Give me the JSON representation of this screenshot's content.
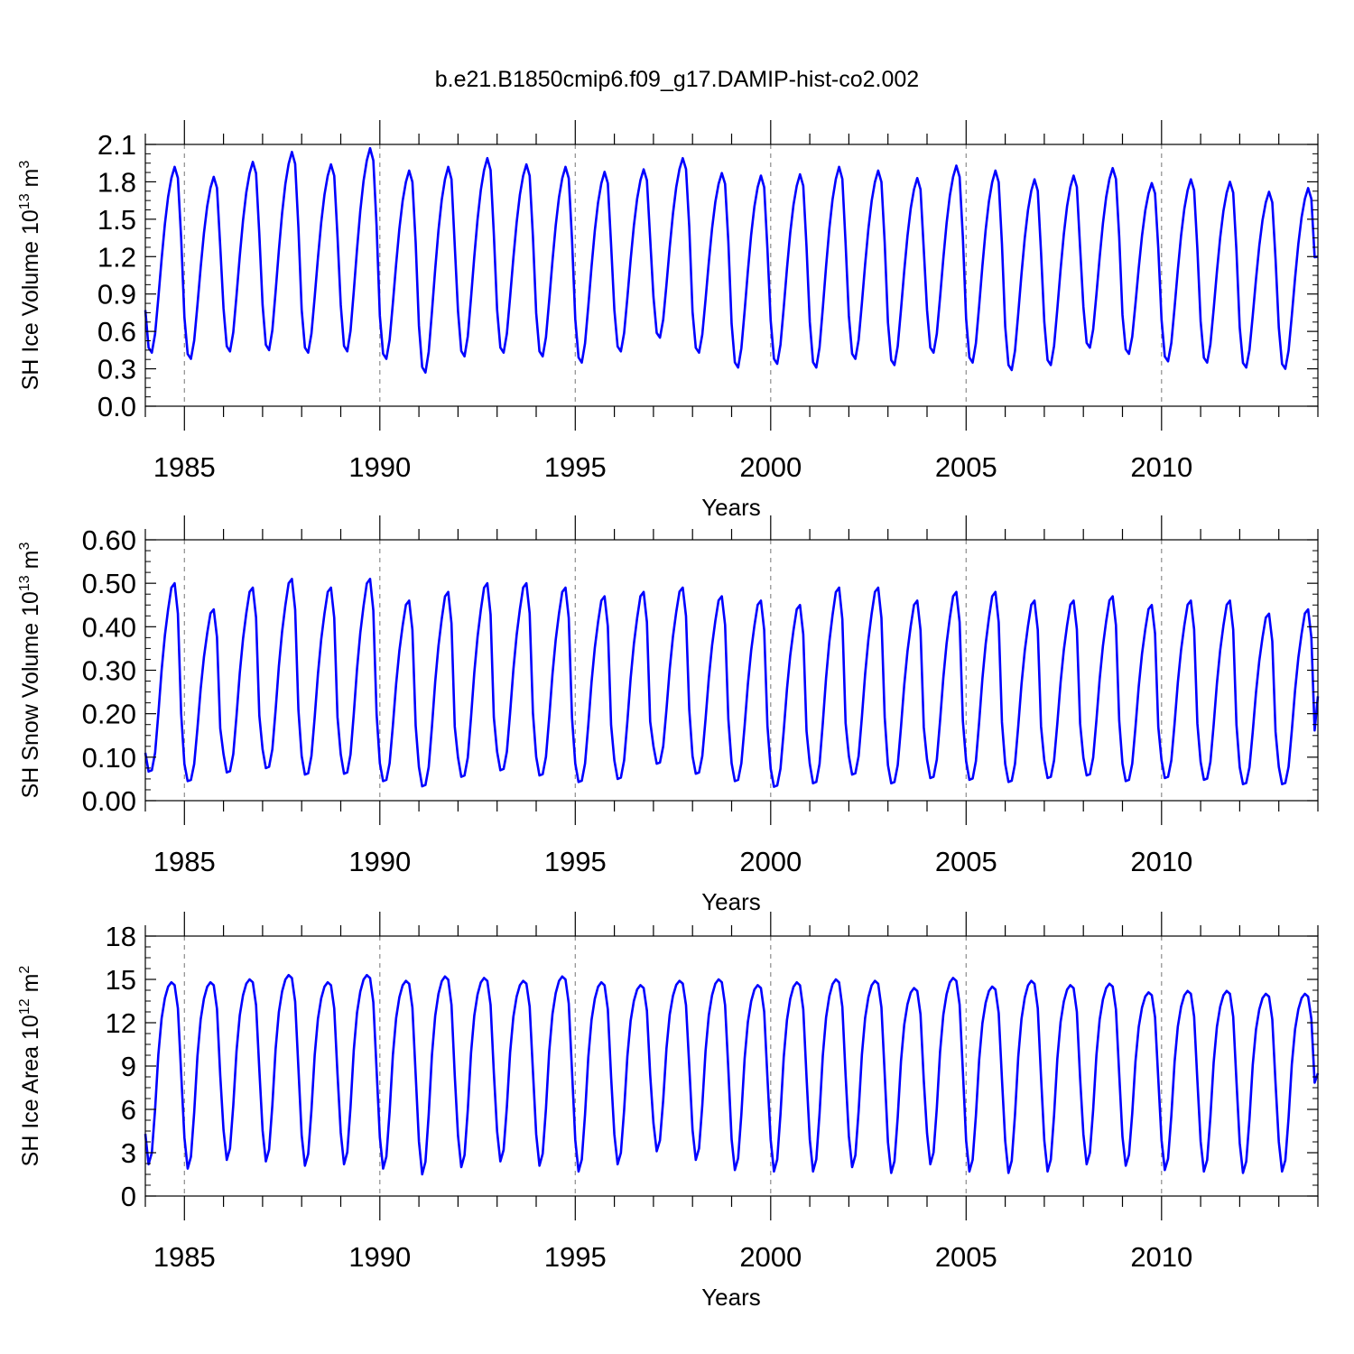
{
  "figure": {
    "title": "b.e21.B1850cmip6.f09_g17.DAMIP-hist-co2.002"
  },
  "colors": {
    "series": "#0000ff",
    "axis": "#000000",
    "year_marker": "#8c8c8c"
  },
  "chart_data": [
    {
      "type": "line",
      "ylabel": {
        "base": "SH Ice Volume 10",
        "exp": "13",
        "unit": " m",
        "unit_exp": "3"
      },
      "xlabel": "Years",
      "xlim": [
        1984.0,
        2014.0
      ],
      "ylim": [
        0.0,
        2.1
      ],
      "x_ticks": [
        1985,
        1990,
        1995,
        2000,
        2005,
        2010
      ],
      "y_ticks": [
        "0.0",
        "0.3",
        "0.6",
        "0.9",
        "1.2",
        "1.5",
        "1.8",
        "2.1"
      ],
      "grid": "dashed vertical lines at labeled years",
      "series": [
        {
          "x_start": 1984.0,
          "step_months": 1,
          "annual_cycle": [
            0.77,
            0.47,
            0.43,
            0.58,
            0.87,
            1.18,
            1.46,
            1.68,
            1.83,
            1.92,
            1.83,
            1.35
          ],
          "annual_min": [
            0.43,
            0.38,
            0.44,
            0.45,
            0.43,
            0.44,
            0.38,
            0.27,
            0.4,
            0.43,
            0.4,
            0.35,
            0.44,
            0.55,
            0.43,
            0.31,
            0.34,
            0.31,
            0.38,
            0.33,
            0.43,
            0.35,
            0.29,
            0.33,
            0.47,
            0.42,
            0.36,
            0.35,
            0.31,
            0.3
          ],
          "annual_max": [
            1.92,
            1.84,
            1.96,
            2.04,
            1.94,
            2.07,
            1.89,
            1.92,
            1.99,
            1.94,
            1.92,
            1.88,
            1.9,
            1.99,
            1.87,
            1.85,
            1.86,
            1.92,
            1.89,
            1.83,
            1.93,
            1.89,
            1.82,
            1.85,
            1.91,
            1.79,
            1.82,
            1.8,
            1.72,
            1.75
          ],
          "end_value": 1.2
        }
      ]
    },
    {
      "type": "line",
      "ylabel": {
        "base": "SH Snow Volume 10",
        "exp": "13",
        "unit": " m",
        "unit_exp": "3"
      },
      "xlabel": "Years",
      "xlim": [
        1984.0,
        2014.0
      ],
      "ylim": [
        0.0,
        0.6
      ],
      "x_ticks": [
        1985,
        1990,
        1995,
        2000,
        2005,
        2010
      ],
      "y_ticks": [
        "0.00",
        "0.10",
        "0.20",
        "0.30",
        "0.40",
        "0.50",
        "0.60"
      ],
      "grid": "dashed vertical lines at labeled years",
      "series": [
        {
          "x_start": 1984.0,
          "step_months": 1,
          "annual_cycle": [
            0.11,
            0.067,
            0.07,
            0.11,
            0.2,
            0.3,
            0.38,
            0.44,
            0.49,
            0.5,
            0.43,
            0.2
          ],
          "annual_min": [
            0.067,
            0.045,
            0.065,
            0.075,
            0.06,
            0.062,
            0.045,
            0.033,
            0.055,
            0.07,
            0.058,
            0.043,
            0.05,
            0.085,
            0.062,
            0.045,
            0.032,
            0.04,
            0.06,
            0.04,
            0.052,
            0.048,
            0.043,
            0.052,
            0.058,
            0.045,
            0.052,
            0.048,
            0.038,
            0.038
          ],
          "annual_max": [
            0.5,
            0.44,
            0.49,
            0.51,
            0.49,
            0.51,
            0.46,
            0.48,
            0.5,
            0.5,
            0.49,
            0.47,
            0.48,
            0.49,
            0.47,
            0.46,
            0.45,
            0.49,
            0.49,
            0.46,
            0.48,
            0.48,
            0.46,
            0.46,
            0.47,
            0.45,
            0.46,
            0.46,
            0.43,
            0.44
          ],
          "end_value": 0.24
        }
      ]
    },
    {
      "type": "line",
      "ylabel": {
        "base": "SH Ice Area 10",
        "exp": "12",
        "unit": " m",
        "unit_exp": "2"
      },
      "xlabel": "Years",
      "xlim": [
        1984.0,
        2014.0
      ],
      "ylim": [
        0,
        18
      ],
      "x_ticks": [
        1985,
        1990,
        1995,
        2000,
        2005,
        2010
      ],
      "y_ticks": [
        "0",
        "3",
        "6",
        "9",
        "12",
        "15",
        "18"
      ],
      "grid": "dashed vertical lines at labeled years",
      "series": [
        {
          "x_start": 1984.0,
          "step_months": 1,
          "annual_cycle": [
            4.3,
            2.2,
            3.0,
            6.0,
            9.8,
            12.3,
            13.7,
            14.5,
            14.8,
            14.6,
            13.0,
            8.5
          ],
          "annual_min": [
            2.2,
            1.9,
            2.5,
            2.4,
            2.1,
            2.2,
            1.9,
            1.5,
            2.0,
            2.4,
            2.1,
            1.7,
            2.2,
            3.1,
            2.5,
            1.8,
            1.7,
            1.7,
            2.0,
            1.6,
            2.2,
            1.7,
            1.6,
            1.7,
            2.2,
            2.1,
            1.8,
            1.7,
            1.6,
            1.7
          ],
          "annual_max": [
            14.8,
            14.8,
            15.0,
            15.3,
            14.8,
            15.3,
            14.9,
            15.2,
            15.1,
            14.9,
            15.2,
            14.8,
            14.6,
            14.9,
            15.0,
            14.6,
            14.8,
            15.0,
            14.9,
            14.4,
            15.1,
            14.5,
            14.9,
            14.6,
            14.7,
            14.1,
            14.2,
            14.2,
            14.0,
            14.0
          ],
          "end_value": 8.5
        }
      ]
    }
  ]
}
